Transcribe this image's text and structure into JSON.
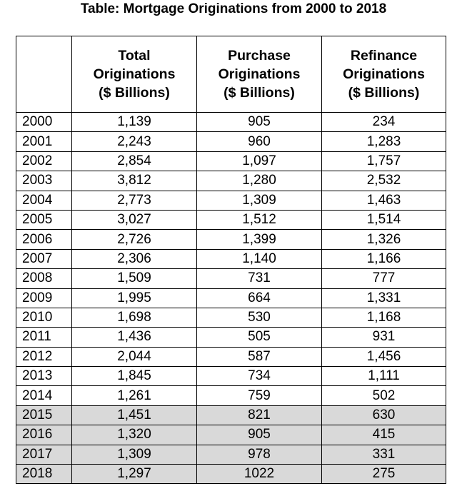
{
  "title": "Table: Mortgage Originations from 2000 to 2018",
  "headers": {
    "year": "",
    "total": [
      "Total",
      "Originations",
      "($ Billions)"
    ],
    "purchase": [
      "Purchase",
      "Originations",
      "($ Billions)"
    ],
    "refinance": [
      "Refinance",
      "Originations",
      "($ Billions)"
    ]
  },
  "shade_color": "#d9d9d9",
  "rows": [
    {
      "year": "2000",
      "total": "1,139",
      "purchase": "905",
      "refinance": "234"
    },
    {
      "year": "2001",
      "total": "2,243",
      "purchase": "960",
      "refinance": "1,283"
    },
    {
      "year": "2002",
      "total": "2,854",
      "purchase": "1,097",
      "refinance": "1,757"
    },
    {
      "year": "2003",
      "total": "3,812",
      "purchase": "1,280",
      "refinance": "2,532"
    },
    {
      "year": "2004",
      "total": "2,773",
      "purchase": "1,309",
      "refinance": "1,463"
    },
    {
      "year": "2005",
      "total": "3,027",
      "purchase": "1,512",
      "refinance": "1,514"
    },
    {
      "year": "2006",
      "total": "2,726",
      "purchase": "1,399",
      "refinance": "1,326"
    },
    {
      "year": "2007",
      "total": "2,306",
      "purchase": "1,140",
      "refinance": "1,166"
    },
    {
      "year": "2008",
      "total": "1,509",
      "purchase": "731",
      "refinance": "777"
    },
    {
      "year": "2009",
      "total": "1,995",
      "purchase": "664",
      "refinance": "1,331"
    },
    {
      "year": "2010",
      "total": "1,698",
      "purchase": "530",
      "refinance": "1,168"
    },
    {
      "year": "2011",
      "total": "1,436",
      "purchase": "505",
      "refinance": "931"
    },
    {
      "year": "2012",
      "total": "2,044",
      "purchase": "587",
      "refinance": "1,456"
    },
    {
      "year": "2013",
      "total": "1,845",
      "purchase": "734",
      "refinance": "1,111"
    },
    {
      "year": "2014",
      "total": "1,261",
      "purchase": "759",
      "refinance": "502"
    },
    {
      "year": "2015",
      "total": "1,451",
      "purchase": "821",
      "refinance": "630",
      "shaded": true
    },
    {
      "year": "2016",
      "total": "1,320",
      "purchase": "905",
      "refinance": "415",
      "shaded": true
    },
    {
      "year": "2017",
      "total": "1,309",
      "purchase": "978",
      "refinance": "331",
      "shaded": true
    },
    {
      "year": "2018",
      "total": "1,297",
      "purchase": "1022",
      "refinance": "275",
      "shaded": true
    }
  ]
}
